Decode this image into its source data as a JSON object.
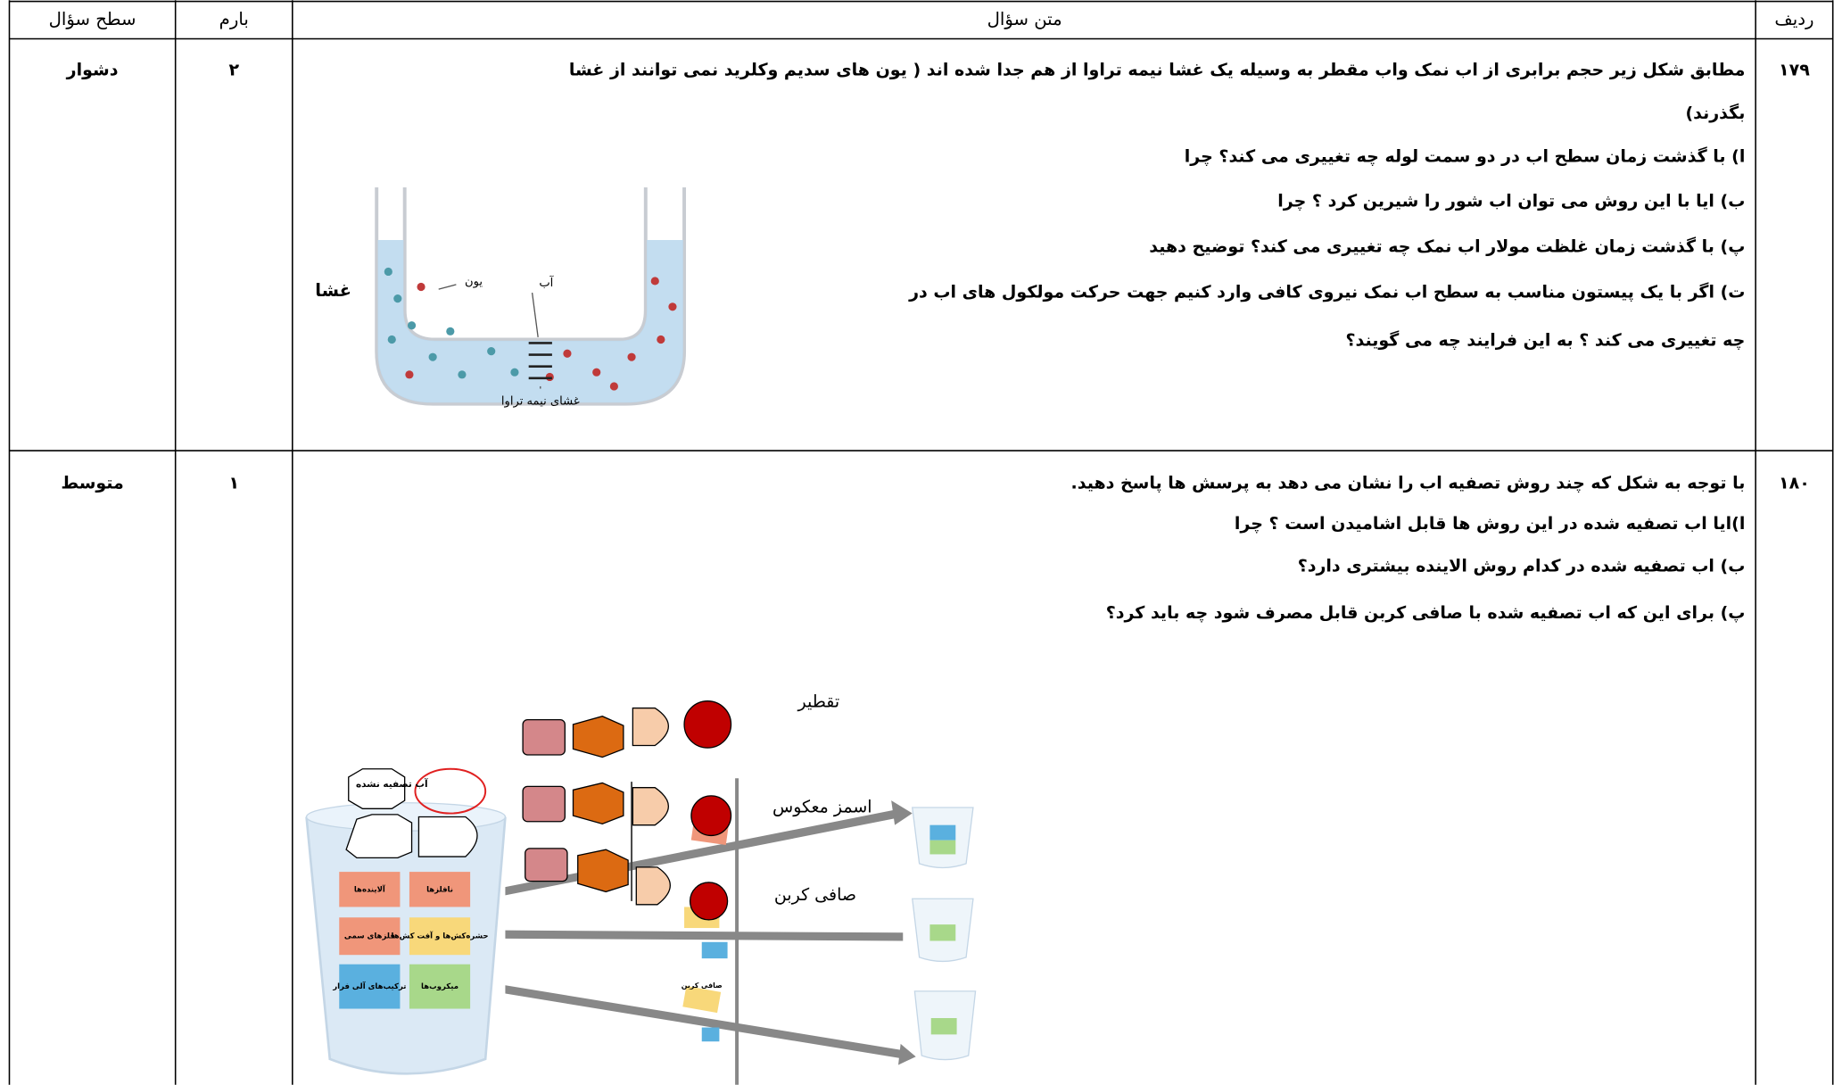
{
  "table": {
    "headers": {
      "number": "ردیف",
      "text": "متن سؤال",
      "score": "بارم",
      "level": "سطح سؤال"
    },
    "rows": [
      {
        "number": "۱۷۹",
        "score": "۲",
        "level": "دشوار",
        "lines": [
          "مطابق شکل زیر حجم برابری از اب نمک واب مقطر  به وسیله یک غشا نیمه تراوا از هم جدا شده اند ( یون های سدیم وکلرید نمی توانند از غشا",
          "بگذرند)",
          "ا) با گذشت زمان سطح اب در دو سمت لوله چه تغییری می کند؟ چرا",
          "ب) ایا با این روش می توان اب شور را شیرین کرد ؟ چرا",
          "پ) با گذشت زمان غلظت مولار اب نمک چه تغییری می کند؟ توضیح دهید",
          "ت) اگر با یک پیستون مناسب به سطح اب نمک نیروی کافی وارد کنیم جهت حرکت مولکول های اب  در",
          "چه تغییری می کند ؟ به این فرایند چه می گویند؟"
        ],
        "figure": {
          "membrane": "غشا",
          "ion": "یون",
          "water": "آب",
          "semipermeable": "غشای نیمه تراوا"
        }
      },
      {
        "number": "۱۸۰",
        "score": "۱",
        "level": "متوسط",
        "lines": [
          "با توجه به شکل که چند روش تصفیه اب را نشان می دهد به پرسش ها پاسخ دهید.",
          "ا)ایا اب تصفیه شده در  این روش ها قابل اشامیدن است ؟ چرا",
          "ب) اب تصفیه شده در کدام روش الاینده بیشتری دارد؟",
          "پ) برای این که اب تصفیه شده با صافی کربن قابل مصرف شود چه باید کرد؟"
        ],
        "figure": {
          "distillation": "تقطیر",
          "reverse_osmosis": "اسمز معکوس",
          "carbon_filter": "صافی کربن",
          "untreated": "آب تصفیه نشده",
          "boxes": [
            "آلاینده‌ها",
            "نافلزها",
            "فلزهای سمی",
            "حشره‌کش‌ها و آفت کش‌ها",
            "ترکیب‌های آلی فرار",
            "میکروب‌ها"
          ],
          "small_filter": "صافی کربن"
        }
      }
    ]
  }
}
